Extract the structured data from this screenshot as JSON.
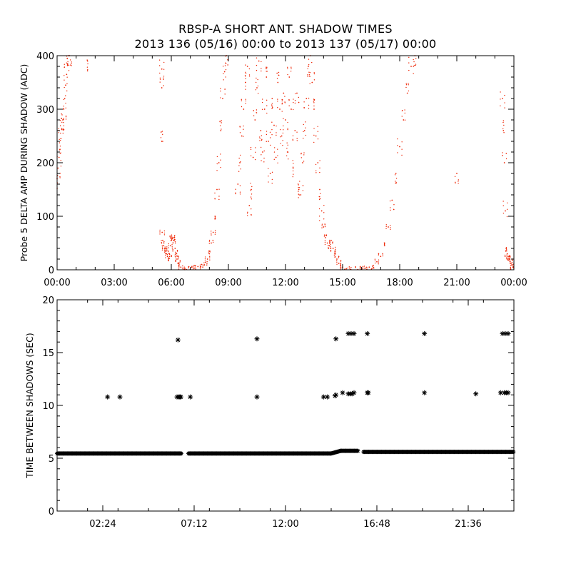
{
  "title_line1": "RBSP-A SHORT ANT. SHADOW TIMES",
  "title_line2": "2013 136 (05/16) 00:00 to 2013 137 (05/17) 00:00",
  "colors": {
    "top_series": "#ee2200",
    "bottom_series": "#000000",
    "axes": "#000000"
  },
  "chart_data": [
    {
      "type": "scatter",
      "title": "",
      "xlabel": "",
      "ylabel": "Probe 5 DELTA AMP DURING SHADOW (ADC)",
      "x_unit": "hours",
      "xlim": [
        0,
        24
      ],
      "ylim": [
        0,
        400
      ],
      "x_tick_values": [
        0,
        3,
        6,
        9,
        12,
        15,
        18,
        21,
        24
      ],
      "x_tick_labels": [
        "00:00",
        "03:00",
        "06:00",
        "09:00",
        "12:00",
        "15:00",
        "18:00",
        "21:00",
        "00:00"
      ],
      "y_tick_values": [
        0,
        100,
        200,
        300,
        400
      ],
      "y_tick_labels": [
        "0",
        "100",
        "200",
        "300",
        "400"
      ],
      "grid": false,
      "marker": "dot",
      "series": [
        {
          "color": "#ee2200",
          "points": [
            [
              0.0,
              170
            ],
            [
              0.05,
              190
            ],
            [
              0.1,
              210
            ],
            [
              0.15,
              225
            ],
            [
              0.2,
              245
            ],
            [
              0.25,
              262
            ],
            [
              0.3,
              280
            ],
            [
              0.35,
              300
            ],
            [
              0.4,
              320
            ],
            [
              0.45,
              345
            ],
            [
              0.5,
              365
            ],
            [
              0.55,
              385
            ],
            [
              0.6,
              400
            ],
            [
              0.65,
              400
            ],
            [
              1.6,
              390
            ],
            [
              5.5,
              375
            ],
            [
              5.5,
              340
            ],
            [
              5.5,
              240
            ],
            [
              5.52,
              70
            ],
            [
              5.55,
              55
            ],
            [
              5.6,
              45
            ],
            [
              5.65,
              40
            ],
            [
              5.7,
              35
            ],
            [
              5.75,
              30
            ],
            [
              5.8,
              25
            ],
            [
              5.85,
              22
            ],
            [
              5.9,
              30
            ],
            [
              5.95,
              45
            ],
            [
              6.0,
              55
            ],
            [
              6.05,
              58
            ],
            [
              6.1,
              60
            ],
            [
              6.15,
              55
            ],
            [
              6.2,
              40
            ],
            [
              6.25,
              30
            ],
            [
              6.3,
              20
            ],
            [
              6.35,
              12
            ],
            [
              6.4,
              8
            ],
            [
              6.5,
              5
            ],
            [
              6.6,
              3
            ],
            [
              6.7,
              1
            ],
            [
              6.8,
              0.5
            ],
            [
              7.0,
              1
            ],
            [
              7.2,
              3
            ],
            [
              7.4,
              6
            ],
            [
              7.6,
              10
            ],
            [
              7.8,
              14
            ],
            [
              7.9,
              20
            ],
            [
              8.0,
              30
            ],
            [
              8.1,
              50
            ],
            [
              8.2,
              70
            ],
            [
              8.3,
              100
            ],
            [
              8.4,
              150
            ],
            [
              8.5,
              200
            ],
            [
              8.6,
              260
            ],
            [
              8.7,
              320
            ],
            [
              8.8,
              370
            ],
            [
              8.9,
              400
            ],
            [
              9.5,
              160
            ],
            [
              9.6,
              200
            ],
            [
              9.7,
              250
            ],
            [
              9.8,
              300
            ],
            [
              9.9,
              350
            ],
            [
              10.0,
              380
            ],
            [
              10.1,
              120
            ],
            [
              10.2,
              150
            ],
            [
              10.3,
              210
            ],
            [
              10.4,
              280
            ],
            [
              10.5,
              340
            ],
            [
              10.6,
              390
            ],
            [
              10.7,
              260
            ],
            [
              10.8,
              220
            ],
            [
              10.9,
              300
            ],
            [
              11.0,
              360
            ],
            [
              11.1,
              240
            ],
            [
              11.2,
              180
            ],
            [
              11.3,
              320
            ],
            [
              11.4,
              270
            ],
            [
              11.5,
              210
            ],
            [
              11.6,
              350
            ],
            [
              11.7,
              300
            ],
            [
              11.8,
              250
            ],
            [
              11.9,
              330
            ],
            [
              12.0,
              280
            ],
            [
              12.1,
              220
            ],
            [
              12.2,
              360
            ],
            [
              12.3,
              300
            ],
            [
              12.4,
              190
            ],
            [
              12.5,
              260
            ],
            [
              12.6,
              330
            ],
            [
              12.7,
              150
            ],
            [
              12.8,
              140
            ],
            [
              12.9,
              200
            ],
            [
              13.0,
              260
            ],
            [
              13.1,
              320
            ],
            [
              13.2,
              380
            ],
            [
              13.3,
              400
            ],
            [
              13.4,
              350
            ],
            [
              13.5,
              300
            ],
            [
              13.6,
              250
            ],
            [
              13.7,
              200
            ],
            [
              13.8,
              150
            ],
            [
              13.9,
              110
            ],
            [
              14.0,
              80
            ],
            [
              14.1,
              60
            ],
            [
              14.2,
              50
            ],
            [
              14.3,
              45
            ],
            [
              14.4,
              55
            ],
            [
              14.5,
              40
            ],
            [
              14.6,
              30
            ],
            [
              14.7,
              20
            ],
            [
              14.8,
              12
            ],
            [
              14.9,
              8
            ],
            [
              15.0,
              5
            ],
            [
              15.2,
              2
            ],
            [
              15.4,
              0.5
            ],
            [
              15.8,
              0.5
            ],
            [
              16.0,
              1
            ],
            [
              16.2,
              3
            ],
            [
              16.4,
              5
            ],
            [
              16.6,
              8
            ],
            [
              16.8,
              15
            ],
            [
              17.0,
              25
            ],
            [
              17.2,
              45
            ],
            [
              17.4,
              80
            ],
            [
              17.6,
              130
            ],
            [
              17.8,
              180
            ],
            [
              18.0,
              230
            ],
            [
              18.2,
              280
            ],
            [
              18.4,
              330
            ],
            [
              18.6,
              380
            ],
            [
              18.8,
              400
            ],
            [
              21.0,
              180
            ],
            [
              23.4,
              320
            ],
            [
              23.45,
              260
            ],
            [
              23.5,
              200
            ],
            [
              23.55,
              110
            ],
            [
              23.6,
              40
            ],
            [
              23.65,
              30
            ],
            [
              23.7,
              25
            ],
            [
              23.75,
              20
            ],
            [
              23.8,
              15
            ],
            [
              23.85,
              12
            ],
            [
              23.9,
              8
            ],
            [
              23.95,
              5
            ]
          ]
        }
      ]
    },
    {
      "type": "scatter",
      "title": "",
      "xlabel": "",
      "ylabel": "TIME BETWEEN SHADOWS (SEC)",
      "x_unit": "hours",
      "xlim": [
        0,
        24
      ],
      "ylim": [
        0,
        20
      ],
      "x_tick_values": [
        2.4,
        7.2,
        12.0,
        16.8,
        21.6
      ],
      "x_tick_labels": [
        "02:24",
        "07:12",
        "12:00",
        "16:48",
        "21:36"
      ],
      "y_tick_values": [
        0,
        5,
        10,
        15,
        20
      ],
      "y_tick_labels": [
        "0",
        "5",
        "10",
        "15",
        "20"
      ],
      "grid": false,
      "marker": "asterisk",
      "baseline": {
        "description": "dense band of asterisk markers near 5.4-5.7 s",
        "segments": [
          {
            "x": [
              0.0,
              6.55
            ],
            "y": 5.45
          },
          {
            "x": [
              6.9,
              14.4
            ],
            "y": 5.45
          },
          {
            "x": [
              14.4,
              14.9
            ],
            "y": [
              5.45,
              5.7
            ]
          },
          {
            "x": [
              14.9,
              15.8
            ],
            "y": 5.7
          },
          {
            "x": [
              16.1,
              24.0
            ],
            "y": 5.6
          }
        ]
      },
      "series": [
        {
          "color": "#000000",
          "points": [
            [
              2.65,
              10.8
            ],
            [
              3.3,
              10.8
            ],
            [
              6.35,
              16.2
            ],
            [
              6.3,
              10.8
            ],
            [
              6.4,
              10.8
            ],
            [
              6.45,
              10.8
            ],
            [
              6.5,
              10.8
            ],
            [
              7.0,
              10.8
            ],
            [
              10.5,
              16.3
            ],
            [
              10.5,
              10.8
            ],
            [
              14.0,
              10.8
            ],
            [
              14.2,
              10.8
            ],
            [
              14.6,
              10.9
            ],
            [
              14.65,
              11.0
            ],
            [
              14.65,
              16.3
            ],
            [
              15.0,
              11.2
            ],
            [
              15.3,
              11.1
            ],
            [
              15.4,
              11.1
            ],
            [
              15.5,
              11.1
            ],
            [
              15.6,
              11.2
            ],
            [
              15.3,
              16.8
            ],
            [
              15.45,
              16.8
            ],
            [
              15.6,
              16.8
            ],
            [
              16.3,
              11.2
            ],
            [
              16.35,
              11.2
            ],
            [
              16.3,
              16.8
            ],
            [
              19.3,
              16.8
            ],
            [
              19.3,
              11.2
            ],
            [
              22.0,
              11.1
            ],
            [
              23.3,
              11.2
            ],
            [
              23.5,
              11.2
            ],
            [
              23.6,
              11.2
            ],
            [
              23.7,
              11.2
            ],
            [
              23.4,
              16.8
            ],
            [
              23.55,
              16.8
            ],
            [
              23.7,
              16.8
            ]
          ]
        }
      ]
    }
  ]
}
